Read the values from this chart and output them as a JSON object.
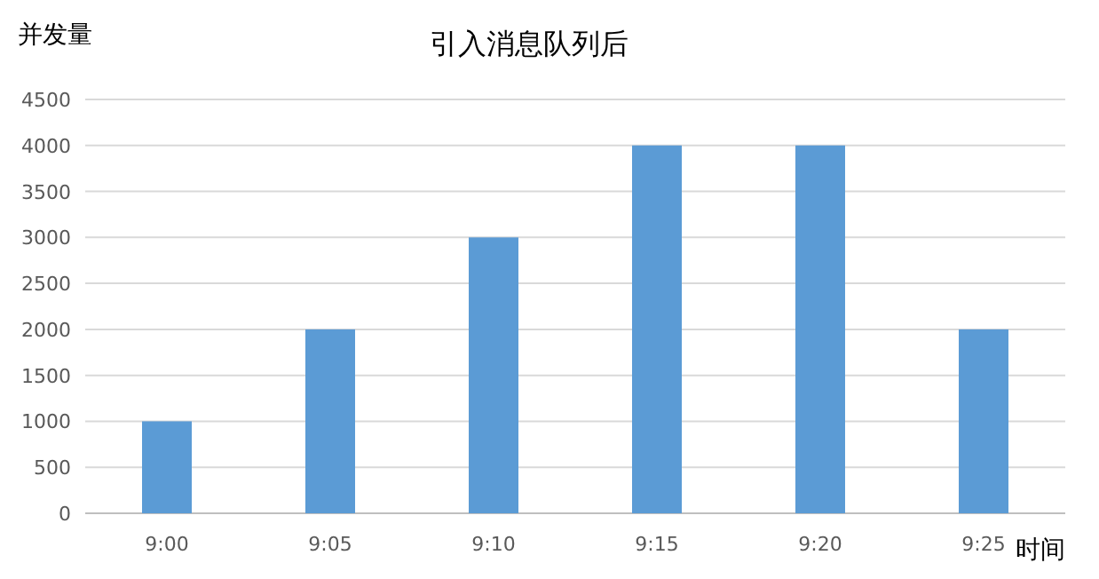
{
  "chart_data": {
    "type": "bar",
    "title": "引入消息队列后",
    "xlabel": "时间",
    "ylabel": "并发量",
    "categories": [
      "9:00",
      "9:05",
      "9:10",
      "9:15",
      "9:20",
      "9:25"
    ],
    "values": [
      1000,
      2000,
      3000,
      4000,
      4000,
      2000
    ],
    "color": "#5b9bd5",
    "ylim": [
      0,
      4500
    ],
    "yticks": [
      0,
      500,
      1000,
      1500,
      2000,
      2500,
      3000,
      3500,
      4000,
      4500
    ],
    "grid": "y"
  }
}
